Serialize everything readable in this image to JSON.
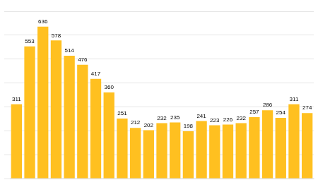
{
  "chart_data": {
    "type": "bar",
    "categories": [
      null,
      null,
      null,
      null,
      null,
      null,
      null,
      null,
      null,
      null,
      null,
      null,
      null,
      null,
      null,
      null,
      null,
      null,
      null,
      null,
      null,
      null,
      null
    ],
    "values": [
      311,
      553,
      636,
      578,
      514,
      476,
      417,
      360,
      251,
      212,
      202,
      232,
      235,
      198,
      241,
      223,
      226,
      232,
      257,
      286,
      254,
      311,
      274
    ],
    "color": "#FFC020",
    "ylim": [
      0,
      700
    ],
    "yticks": [
      0,
      100,
      200,
      300,
      400,
      500,
      600,
      700
    ],
    "grid": true,
    "data_labels": true,
    "tick_labels": false
  }
}
